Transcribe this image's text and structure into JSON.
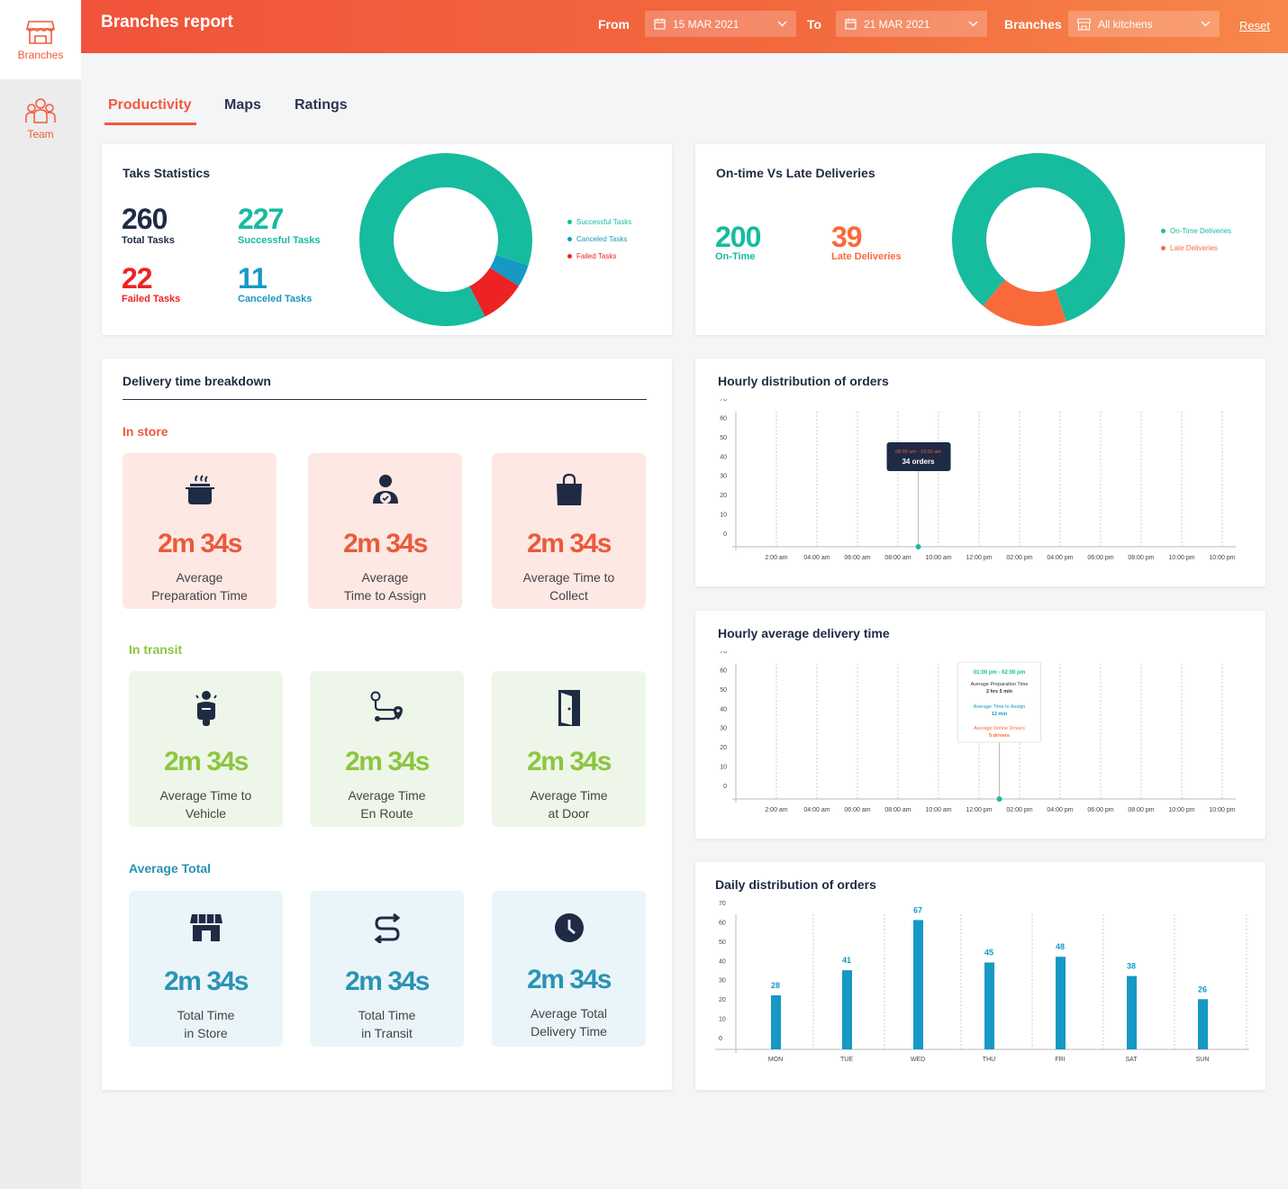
{
  "sidebar": {
    "items": [
      {
        "label": "Branches",
        "icon": "store-icon",
        "active": true
      },
      {
        "label": "Team",
        "icon": "team-icon",
        "active": false
      }
    ]
  },
  "header": {
    "title": "Branches report",
    "from_label": "From",
    "from_value": "15 MAR 2021",
    "to_label": "To",
    "to_value": "21 MAR 2021",
    "branches_label": "Branches",
    "branches_value": "All kitchens",
    "reset_label": "Reset"
  },
  "tabs": [
    {
      "label": "Productivity",
      "active": true
    },
    {
      "label": "Maps",
      "active": false
    },
    {
      "label": "Ratings",
      "active": false
    }
  ],
  "task_stats": {
    "title": "Taks Statistics",
    "total": {
      "value": "260",
      "label": "Total Tasks"
    },
    "successful": {
      "value": "227",
      "label": "Successful Tasks"
    },
    "failed": {
      "value": "22",
      "label": "Failed Tasks"
    },
    "canceled": {
      "value": "11",
      "label": "Canceled Tasks"
    },
    "legend": [
      "Successful Tasks",
      "Canceled Tasks",
      "Failed Tasks"
    ]
  },
  "ontime": {
    "title": "On-time Vs Late Deliveries",
    "ontime": {
      "value": "200",
      "label": "On-Time"
    },
    "late": {
      "value": "39",
      "label": "Late Deliveries"
    },
    "legend": [
      "On-Time Deliveries",
      "Late Deliveries"
    ]
  },
  "breakdown": {
    "title": "Delivery time breakdown",
    "in_store_label": "In store",
    "in_transit_label": "In transit",
    "average_total_label": "Average Total",
    "in_store": [
      {
        "value": "2m 34s",
        "line1": "Average",
        "line2": "Preparation Time",
        "icon": "cooking-pot-icon"
      },
      {
        "value": "2m 34s",
        "line1": "Average",
        "line2": "Time to Assign",
        "icon": "user-check-icon"
      },
      {
        "value": "2m 34s",
        "line1": "Average Time to",
        "line2": "Collect",
        "icon": "shopping-bag-icon"
      }
    ],
    "in_transit": [
      {
        "value": "2m 34s",
        "line1": "Average Time to",
        "line2": "Vehicle",
        "icon": "scooter-icon"
      },
      {
        "value": "2m 34s",
        "line1": "Average Time",
        "line2": "En Route",
        "icon": "route-icon"
      },
      {
        "value": "2m 34s",
        "line1": "Average Time",
        "line2": "at Door",
        "icon": "door-icon"
      }
    ],
    "average_total": [
      {
        "value": "2m 34s",
        "line1": "Total Time",
        "line2": "in Store",
        "icon": "storefront-icon"
      },
      {
        "value": "2m 34s",
        "line1": "Total Time",
        "line2": "in Transit",
        "icon": "transit-route-icon"
      },
      {
        "value": "2m 34s",
        "line1": "Average Total",
        "line2": "Delivery Time",
        "icon": "clock-icon"
      }
    ]
  },
  "hourly_orders": {
    "title": "Hourly distribution of orders",
    "tooltip_time": "08:00 am - 10:00 am",
    "tooltip_value": "34 orders"
  },
  "hourly_delivery": {
    "title": "Hourly average delivery time",
    "tooltip_time": "01:00 pm - 02:00 pm",
    "tooltip_l1": "Average Preparation Time",
    "tooltip_v1": "2 hrs 5 min",
    "tooltip_l2": "Average Time to Assign",
    "tooltip_v2": "12 min",
    "tooltip_l3": "Average Online Drivers",
    "tooltip_v3": "5 drivers"
  },
  "daily_orders": {
    "title": "Daily distribution of orders"
  },
  "colors": {
    "accent": "#f15a3a",
    "teal": "#17bb9e",
    "blue": "#1699c4",
    "red": "#ee2222",
    "orange": "#f96a3a",
    "navy": "#1f2a44"
  },
  "chart_data": [
    {
      "type": "pie",
      "categories": [
        "Successful Tasks",
        "Canceled Tasks",
        "Failed Tasks"
      ],
      "values": [
        227,
        11,
        22
      ]
    },
    {
      "type": "pie",
      "categories": [
        "On-Time Deliveries",
        "Late Deliveries"
      ],
      "values": [
        200,
        39
      ]
    },
    {
      "type": "line",
      "x": [
        "2:00 am",
        "04:00 am",
        "06:00 am",
        "08:00 am",
        "10:00 am",
        "12:00 pm",
        "02:00 pm",
        "04:00 pm",
        "06:00 pm",
        "08:00 pm",
        "10:00 pm",
        "10:00 pm"
      ],
      "yticks": [
        0,
        10,
        20,
        30,
        40,
        50,
        60,
        70
      ],
      "ylim": [
        0,
        70
      ],
      "grid": true,
      "highlight": {
        "x": "08:00 am - 10:00 am",
        "value": 34
      }
    },
    {
      "type": "line",
      "x": [
        "2:00 am",
        "04:00 am",
        "06:00 am",
        "08:00 am",
        "10:00 am",
        "12:00 pm",
        "02:00 pm",
        "04:00 pm",
        "06:00 pm",
        "08:00 pm",
        "10:00 pm",
        "10:00 pm"
      ],
      "yticks": [
        0,
        10,
        20,
        30,
        40,
        50,
        60,
        70
      ],
      "ylim": [
        0,
        70
      ],
      "grid": true,
      "highlight": {
        "x": "01:00 pm - 02:00 pm"
      }
    },
    {
      "type": "bar",
      "categories": [
        "MON",
        "TUE",
        "WED",
        "THU",
        "FRI",
        "SAT",
        "SUN"
      ],
      "values": [
        28,
        41,
        67,
        45,
        48,
        38,
        26
      ],
      "yticks": [
        0,
        10,
        20,
        30,
        40,
        50,
        60,
        70
      ],
      "ylim": [
        0,
        70
      ],
      "grid": true
    }
  ]
}
